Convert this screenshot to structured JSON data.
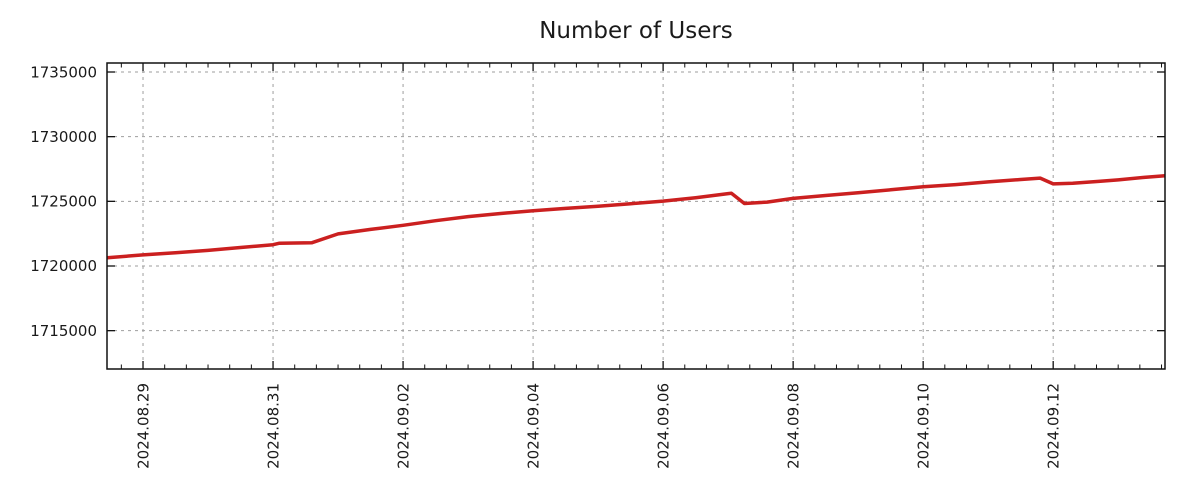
{
  "page": {
    "background": "#ffffff"
  },
  "chart_data": {
    "type": "line",
    "title": "Number of Users",
    "grid": {
      "show": true,
      "color": "#9e9e9e",
      "dash": "3 4",
      "frame_color": "#111111"
    },
    "legend": "none",
    "x_axis": {
      "tick_labels": [
        "2024.08.29",
        "2024.08.31",
        "2024.09.02",
        "2024.09.04",
        "2024.09.06",
        "2024.09.08",
        "2024.09.10",
        "2024.09.12"
      ],
      "tick_days": [
        0,
        2,
        4,
        6,
        8,
        10,
        12,
        14
      ],
      "minor_tick_step_days": 0.33333,
      "range_days": [
        -0.554,
        15.72
      ],
      "day_zero_date": "2024.08.29"
    },
    "y_axis": {
      "ticks": [
        1715000,
        1720000,
        1725000,
        1730000,
        1735000
      ],
      "range": [
        1712036,
        1735696
      ]
    },
    "series": [
      {
        "name": "Number of Users",
        "color": "#cb2020",
        "width": 3.5,
        "points": [
          [
            -0.55,
            1720640
          ],
          [
            0,
            1720860
          ],
          [
            0.5,
            1721030
          ],
          [
            1,
            1721210
          ],
          [
            1.5,
            1721430
          ],
          [
            2,
            1721650
          ],
          [
            2.1,
            1721760
          ],
          [
            2.6,
            1721800
          ],
          [
            3,
            1722480
          ],
          [
            3.5,
            1722830
          ],
          [
            4,
            1723150
          ],
          [
            4.5,
            1723500
          ],
          [
            5,
            1723820
          ],
          [
            5.5,
            1724060
          ],
          [
            6,
            1724270
          ],
          [
            6.5,
            1724450
          ],
          [
            7,
            1724620
          ],
          [
            7.5,
            1724820
          ],
          [
            8,
            1725020
          ],
          [
            8.5,
            1725280
          ],
          [
            9,
            1725600
          ],
          [
            9.05,
            1725620
          ],
          [
            9.25,
            1724830
          ],
          [
            9.6,
            1724940
          ],
          [
            10,
            1725230
          ],
          [
            10.5,
            1725450
          ],
          [
            11,
            1725670
          ],
          [
            11.5,
            1725890
          ],
          [
            12,
            1726120
          ],
          [
            12.5,
            1726290
          ],
          [
            13,
            1726500
          ],
          [
            13.5,
            1726690
          ],
          [
            13.8,
            1726800
          ],
          [
            14,
            1726350
          ],
          [
            14.3,
            1726400
          ],
          [
            14.7,
            1726540
          ],
          [
            15,
            1726660
          ],
          [
            15.4,
            1726850
          ],
          [
            15.72,
            1726980
          ]
        ]
      }
    ]
  }
}
